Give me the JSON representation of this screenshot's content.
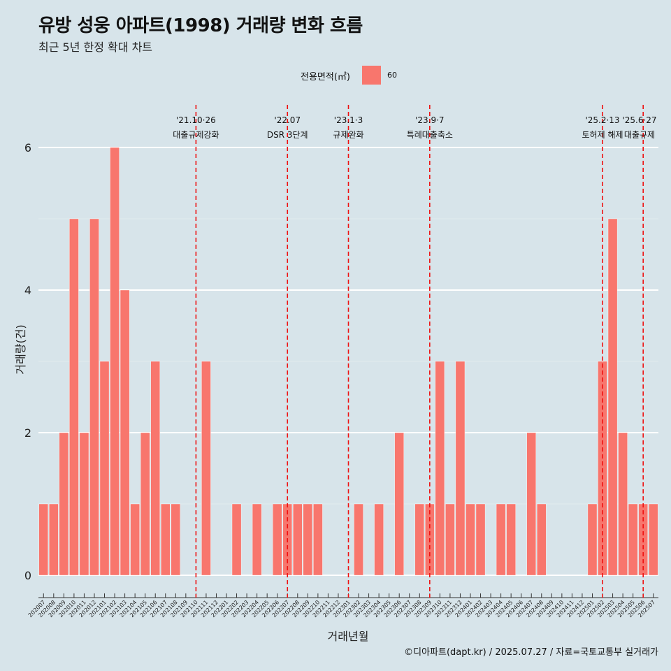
{
  "title": "유방 성웅 아파트(1998) 거래량 변화 흐름",
  "subtitle": "최근 5년 한정 확대 차트",
  "legend": {
    "title": "전용면적(㎡)",
    "label": "60",
    "color": "#f8766d"
  },
  "caption": "©디아파트(dapt.kr) / 2025.07.27 / 자료=국토교통부 실거래가",
  "chart_data": {
    "type": "bar",
    "xlabel": "거래년월",
    "ylabel": "거래량(건)",
    "ylim": [
      0,
      6
    ],
    "y_ticks": [
      "0",
      "2",
      "4",
      "6"
    ],
    "grid": true,
    "legend_position": "top",
    "bar_color": "#f8766d",
    "categories": [
      "202007",
      "202008",
      "202009",
      "202010",
      "202011",
      "202012",
      "202101",
      "202102",
      "202103",
      "202104",
      "202105",
      "202106",
      "202107",
      "202108",
      "202109",
      "202110",
      "202111",
      "202112",
      "202201",
      "202202",
      "202203",
      "202204",
      "202205",
      "202206",
      "202207",
      "202208",
      "202209",
      "202210",
      "202211",
      "202212",
      "202301",
      "202302",
      "202303",
      "202304",
      "202305",
      "202306",
      "202307",
      "202308",
      "202309",
      "202310",
      "202311",
      "202312",
      "202401",
      "202402",
      "202403",
      "202404",
      "202405",
      "202406",
      "202407",
      "202408",
      "202409",
      "202410",
      "202411",
      "202412",
      "202501",
      "202502",
      "202503",
      "202504",
      "202505",
      "202506",
      "202507"
    ],
    "series": [
      {
        "name": "60",
        "values": [
          1,
          1,
          2,
          5,
          2,
          5,
          3,
          6,
          4,
          1,
          2,
          3,
          1,
          1,
          0,
          0,
          3,
          0,
          0,
          1,
          0,
          1,
          0,
          1,
          1,
          1,
          1,
          1,
          0,
          0,
          0,
          1,
          0,
          1,
          0,
          2,
          0,
          1,
          1,
          3,
          1,
          3,
          1,
          1,
          0,
          1,
          1,
          0,
          2,
          1,
          0,
          0,
          0,
          0,
          1,
          3,
          5,
          2,
          1,
          1,
          1
        ]
      }
    ],
    "annotations": [
      {
        "category": "202110",
        "date": "'21.10·26",
        "text": "대출규제강화"
      },
      {
        "category": "202207",
        "date": "'22.07",
        "text": "DSR 3단계"
      },
      {
        "category": "202301",
        "date": "'23.1·3",
        "text": "규제완화"
      },
      {
        "category": "202309",
        "date": "'23.9·7",
        "text": "특례대출축소"
      },
      {
        "category": "202502",
        "date": "'25.2·13",
        "text": "토허제 해제"
      },
      {
        "category": "202506",
        "date": "'25.6·27",
        "text": "대출규제"
      }
    ]
  }
}
